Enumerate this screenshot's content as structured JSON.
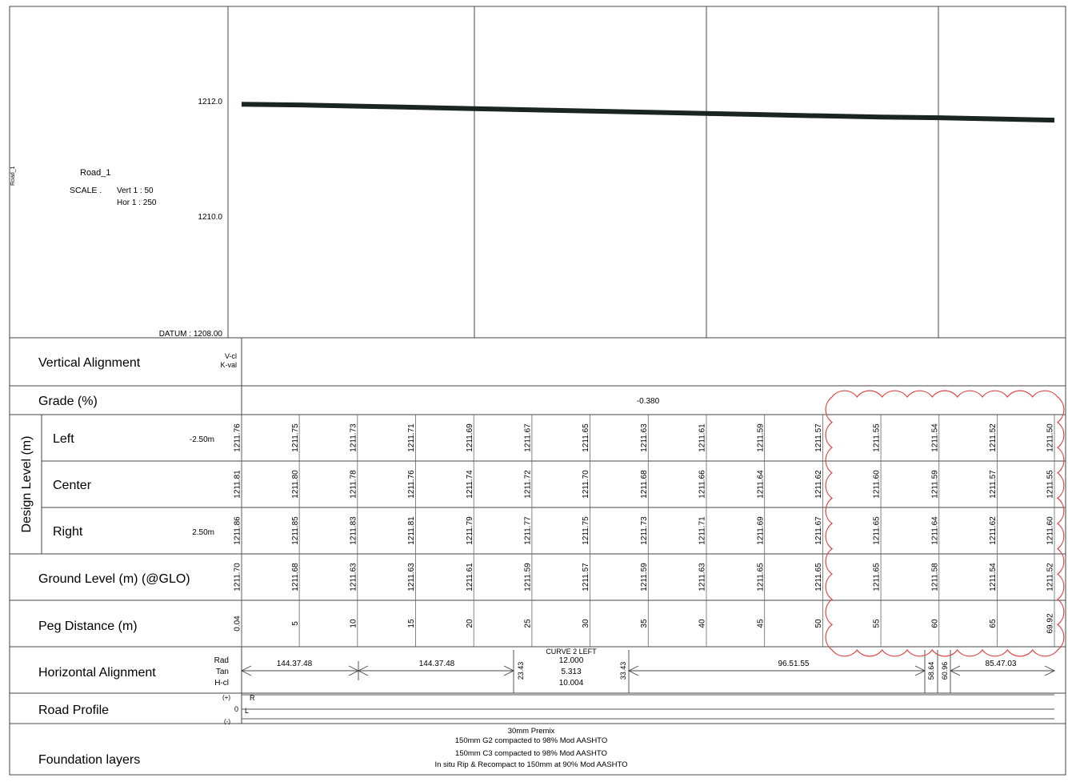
{
  "profile": {
    "road_name": "Road_1",
    "side_label": "Road_1",
    "scale_label": "SCALE .",
    "scale_vert": "Vert 1 :  50",
    "scale_hor": "Hor  1 : 250",
    "y_ticks": [
      "1212.0",
      "1210.0"
    ],
    "datum": "DATUM : 1208.00"
  },
  "rows": {
    "vertical_alignment": "Vertical Alignment",
    "va_sub1": "V-cl",
    "va_sub2": "K-val",
    "grade": "Grade (%)",
    "grade_value": "-0.380",
    "design_level": "Design Level (m)",
    "left": "Left",
    "left_offset": "-2.50m",
    "center": "Center",
    "right": "Right",
    "right_offset": "2.50m",
    "ground": "Ground Level (m) (@GLO)",
    "peg": "Peg Distance (m)",
    "horizontal_alignment": "Horizontal Alignment",
    "ha_rad": "Rad",
    "ha_tan": "Tan",
    "ha_hcl": "H-cl",
    "road_profile": "Road Profile",
    "rp_plus": "(+)",
    "rp_zero": "0",
    "rp_minus": "(-)",
    "rp_r": "R",
    "rp_l": "L",
    "foundation": "Foundation layers"
  },
  "chart_data": {
    "type": "line",
    "title": "Road_1",
    "xlabel": "Peg Distance (m)",
    "ylabel": "",
    "ylim": [
      1208.0,
      1213.4
    ],
    "x": [
      0.04,
      5,
      10,
      15,
      20,
      25,
      30,
      35,
      40,
      45,
      50,
      55,
      60,
      65,
      69.92
    ],
    "series": [
      {
        "name": "Center",
        "values": [
          1211.81,
          1211.8,
          1211.78,
          1211.76,
          1211.74,
          1211.72,
          1211.7,
          1211.68,
          1211.66,
          1211.64,
          1211.62,
          1211.6,
          1211.59,
          1211.57,
          1211.55
        ]
      }
    ],
    "table": {
      "peg": [
        "0.04",
        "5",
        "10",
        "15",
        "20",
        "25",
        "30",
        "35",
        "40",
        "45",
        "50",
        "55",
        "60",
        "65",
        "69.92"
      ],
      "left": [
        "1211.76",
        "1211.75",
        "1211.73",
        "1211.71",
        "1211.69",
        "1211.67",
        "1211.65",
        "1211.63",
        "1211.61",
        "1211.59",
        "1211.57",
        "1211.55",
        "1211.54",
        "1211.52",
        "1211.50"
      ],
      "center": [
        "1211.81",
        "1211.80",
        "1211.78",
        "1211.76",
        "1211.74",
        "1211.72",
        "1211.70",
        "1211.68",
        "1211.66",
        "1211.64",
        "1211.62",
        "1211.60",
        "1211.59",
        "1211.57",
        "1211.55"
      ],
      "right": [
        "1211.86",
        "1211.85",
        "1211.83",
        "1211.81",
        "1211.79",
        "1211.77",
        "1211.75",
        "1211.73",
        "1211.71",
        "1211.69",
        "1211.67",
        "1211.65",
        "1211.64",
        "1211.62",
        "1211.60"
      ],
      "ground": [
        "1211.70",
        "1211.68",
        "1211.63",
        "1211.63",
        "1211.61",
        "1211.59",
        "1211.57",
        "1211.59",
        "1211.63",
        "1211.65",
        "1211.65",
        "1211.65",
        "1211.58",
        "1211.54",
        "1211.52"
      ]
    },
    "horizontal_alignment": {
      "seg1": "144.37.48",
      "seg2": "144.37.48",
      "curve_title": "CURVE 2 LEFT",
      "curve_rad": "12.000",
      "curve_tan": "5.313",
      "curve_hcl": "10.004",
      "pc_start": "23.43",
      "pc_end": "33.43",
      "seg3": "96.51.55",
      "tick_a": "58.64",
      "tick_b": "60.96",
      "seg4": "85.47.03"
    },
    "foundation_layers": [
      "30mm Premix",
      "150mm G2 compacted to 98% Mod AASHTO",
      "150mm C3 compacted to 98% Mod AASHTO",
      "In situ Rip & Recompact to 150mm at 90% Mod AASHTO"
    ]
  }
}
